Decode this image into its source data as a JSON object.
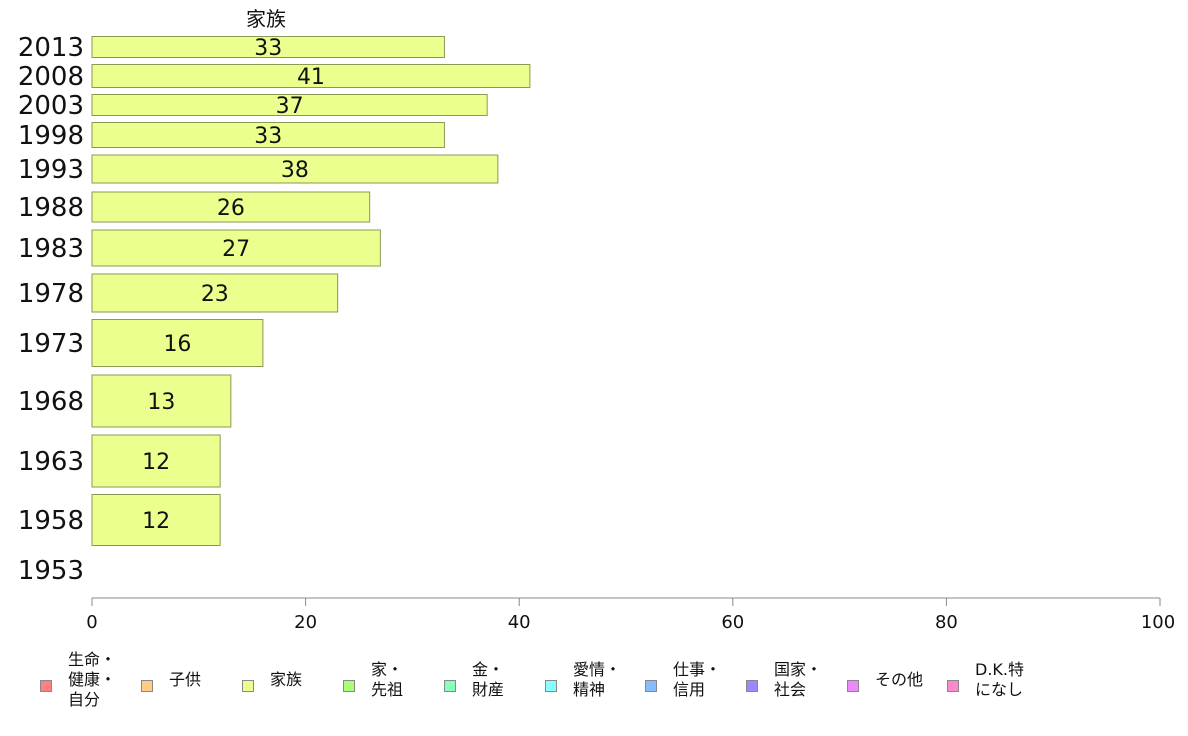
{
  "chart_data": {
    "type": "bar",
    "orientation": "horizontal",
    "title": "家族",
    "categories": [
      "2013",
      "2008",
      "2003",
      "1998",
      "1993",
      "1988",
      "1983",
      "1978",
      "1973",
      "1968",
      "1963",
      "1958",
      "1953"
    ],
    "series": [
      {
        "name": "家族",
        "values": [
          33,
          41,
          37,
          33,
          38,
          26,
          27,
          23,
          16,
          13,
          12,
          12,
          null
        ],
        "color": "#eaff8e"
      }
    ],
    "data_labels": [
      "33",
      "41",
      "37",
      "33",
      "38",
      "26",
      "27",
      "23",
      "16",
      "13",
      "12",
      "12",
      ""
    ],
    "xlim": [
      0,
      100
    ],
    "x_ticks": [
      "0",
      "20",
      "40",
      "60",
      "80",
      "100"
    ],
    "grid": false,
    "legend_position": "bottom"
  },
  "legend": {
    "items": [
      {
        "label": "生命・\n健康・\n自分",
        "color": "#ff8080"
      },
      {
        "label": "子供",
        "color": "#ffcc88"
      },
      {
        "label": "家族",
        "color": "#eaff8e"
      },
      {
        "label": "家・\n先祖",
        "color": "#aaff77"
      },
      {
        "label": "金・\n財産",
        "color": "#88ffbb"
      },
      {
        "label": "愛情・\n精神",
        "color": "#88ffff"
      },
      {
        "label": "仕事・\n信用",
        "color": "#88bbff"
      },
      {
        "label": "国家・\n社会",
        "color": "#9988ff"
      },
      {
        "label": "その他",
        "color": "#ee88ff"
      },
      {
        "label": "D.K.特\nになし",
        "color": "#ff88cc"
      }
    ]
  }
}
